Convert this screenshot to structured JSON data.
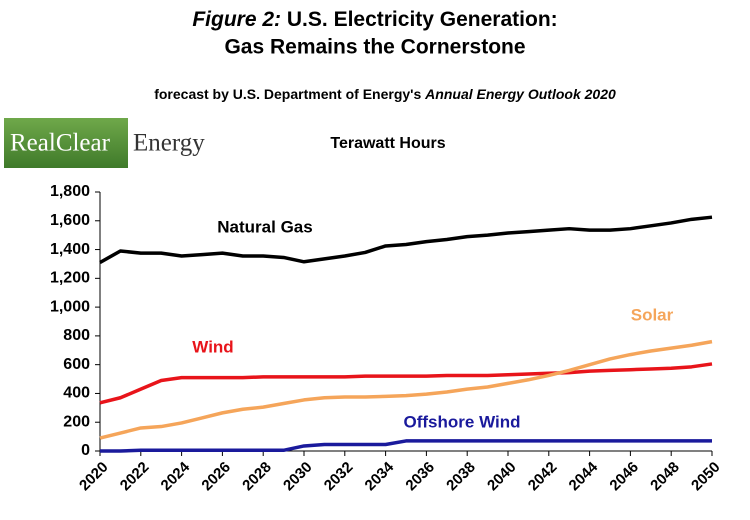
{
  "chart_data": {
    "type": "line",
    "title_prefix": "Figure 2:",
    "title": "U.S. Electricity Generation:",
    "title_line2": "Gas Remains the Cornerstone",
    "subtitle": "forecast by U.S. Department of Energy's",
    "subtitle_italic": "Annual Energy Outlook 2020",
    "logo_left": "RealClear",
    "logo_right": "Energy",
    "y_label": "Terawatt Hours",
    "x": [
      2020,
      2021,
      2022,
      2023,
      2024,
      2025,
      2026,
      2027,
      2028,
      2029,
      2030,
      2031,
      2032,
      2033,
      2034,
      2035,
      2036,
      2037,
      2038,
      2039,
      2040,
      2041,
      2042,
      2043,
      2044,
      2045,
      2046,
      2047,
      2048,
      2049,
      2050
    ],
    "series": [
      {
        "name": "Natural Gas",
        "color": "#000000",
        "values": [
          1310,
          1390,
          1375,
          1375,
          1355,
          1365,
          1375,
          1355,
          1355,
          1345,
          1315,
          1335,
          1355,
          1380,
          1425,
          1435,
          1455,
          1470,
          1490,
          1500,
          1515,
          1525,
          1535,
          1545,
          1535,
          1535,
          1545,
          1565,
          1585,
          1610,
          1625
        ]
      },
      {
        "name": "Wind",
        "color": "#e8141a",
        "values": [
          335,
          370,
          430,
          490,
          510,
          510,
          510,
          510,
          515,
          515,
          515,
          515,
          515,
          520,
          520,
          520,
          520,
          525,
          525,
          525,
          530,
          535,
          540,
          545,
          555,
          560,
          565,
          570,
          575,
          585,
          605
        ]
      },
      {
        "name": "Solar",
        "color": "#f5a55a",
        "values": [
          90,
          125,
          160,
          170,
          195,
          230,
          265,
          290,
          305,
          330,
          355,
          370,
          375,
          375,
          380,
          385,
          395,
          410,
          430,
          445,
          470,
          495,
          525,
          560,
          600,
          640,
          670,
          695,
          715,
          735,
          760
        ]
      },
      {
        "name": "Offshore Wind",
        "color": "#1a1a9c",
        "values": [
          0,
          0,
          5,
          5,
          5,
          5,
          5,
          5,
          5,
          5,
          35,
          45,
          45,
          45,
          45,
          70,
          70,
          70,
          70,
          70,
          70,
          70,
          70,
          70,
          70,
          70,
          70,
          70,
          70,
          70,
          70
        ]
      }
    ],
    "xlim": [
      2020,
      2050
    ],
    "xticks": [
      2020,
      2022,
      2024,
      2026,
      2028,
      2030,
      2032,
      2034,
      2036,
      2038,
      2040,
      2042,
      2044,
      2046,
      2048,
      2050
    ],
    "ylim": [
      0,
      1800
    ],
    "yticks": [
      0,
      200,
      400,
      600,
      800,
      {
        "value": 1000,
        "label": "1,000"
      },
      {
        "value": 1200,
        "label": "1,200"
      },
      {
        "value": 1400,
        "label": "1,400"
      },
      {
        "value": 1600,
        "label": "1,600"
      },
      {
        "value": 1800,
        "label": "1,800"
      }
    ]
  }
}
